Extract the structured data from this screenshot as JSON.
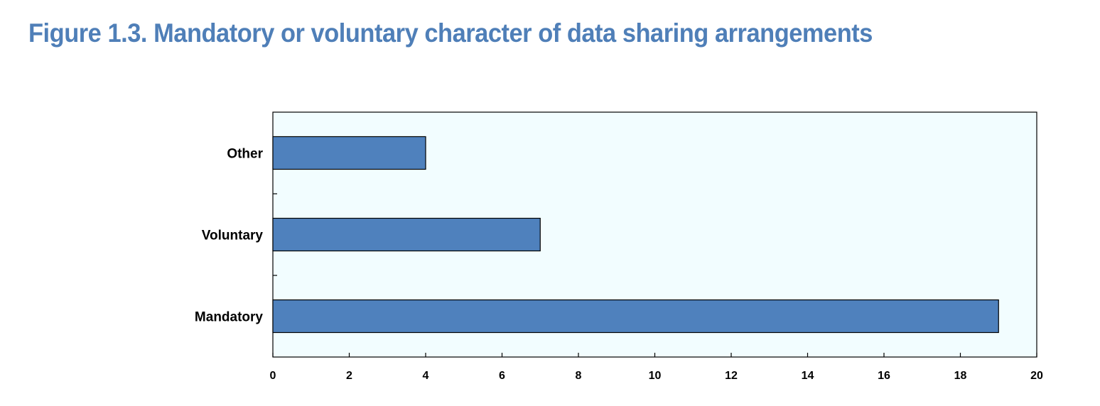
{
  "figure": {
    "title": "Figure 1.3. Mandatory or voluntary character of data sharing arrangements"
  },
  "colors": {
    "title": "#4f7fb8",
    "bar": "#4f81bd",
    "plot_background": "#f2fdff"
  },
  "chart_data": {
    "type": "bar",
    "orientation": "horizontal",
    "categories": [
      "Other",
      "Voluntary",
      "Mandatory"
    ],
    "values": [
      4,
      7,
      19
    ],
    "xlim": [
      0,
      20
    ],
    "x_ticks": [
      0,
      2,
      4,
      6,
      8,
      10,
      12,
      14,
      16,
      18,
      20
    ],
    "xlabel": "",
    "ylabel": "",
    "grid": false,
    "legend": "none"
  }
}
